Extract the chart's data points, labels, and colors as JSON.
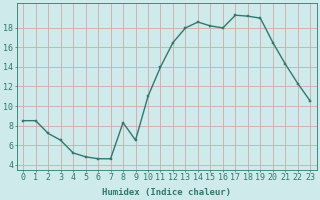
{
  "x": [
    0,
    1,
    2,
    3,
    4,
    5,
    6,
    7,
    8,
    9,
    10,
    11,
    12,
    13,
    14,
    15,
    16,
    17,
    18,
    19,
    20,
    21,
    22,
    23
  ],
  "y": [
    8.5,
    8.5,
    7.2,
    6.5,
    5.2,
    4.8,
    4.6,
    4.6,
    8.3,
    6.5,
    11.0,
    14.0,
    16.5,
    18.0,
    18.6,
    18.2,
    18.0,
    19.3,
    19.2,
    19.0,
    16.5,
    14.3,
    12.3,
    10.5
  ],
  "line_color": "#2d7a6e",
  "marker": "s",
  "marker_size": 2.0,
  "bg_color": "#ceeaea",
  "grid_color": "#d4a8a8",
  "xlabel": "Humidex (Indice chaleur)",
  "ylim": [
    3.5,
    20.5
  ],
  "xlim": [
    -0.5,
    23.5
  ],
  "yticks": [
    4,
    6,
    8,
    10,
    12,
    14,
    16,
    18
  ],
  "xticks": [
    0,
    1,
    2,
    3,
    4,
    5,
    6,
    7,
    8,
    9,
    10,
    11,
    12,
    13,
    14,
    15,
    16,
    17,
    18,
    19,
    20,
    21,
    22,
    23
  ],
  "font_size_label": 6.5,
  "font_size_tick": 6.0,
  "line_width": 1.0
}
